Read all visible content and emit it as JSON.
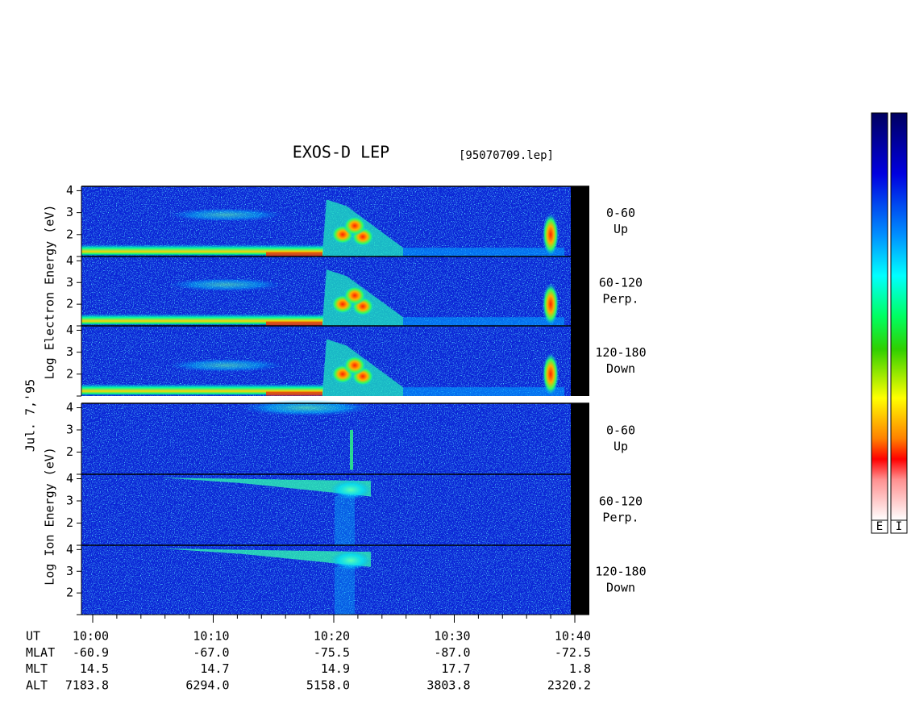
{
  "title": "EXOS-D LEP",
  "file": "[95070709.lep]",
  "date": "Jul. 7,'95",
  "ylim": [
    1,
    4.2
  ],
  "yticks": [
    2,
    3,
    4
  ],
  "electron": {
    "axis_label": "Log  Electron  Energy  (eV)",
    "panels": [
      {
        "angle": "0-60",
        "direction": "Up"
      },
      {
        "angle": "60-120",
        "direction": "Perp."
      },
      {
        "angle": "120-180",
        "direction": "Down"
      }
    ]
  },
  "ion": {
    "axis_label": "Log   Ion   Energy  (eV)",
    "panels": [
      {
        "angle": "0-60",
        "direction": "Up"
      },
      {
        "angle": "60-120",
        "direction": "Perp."
      },
      {
        "angle": "120-180",
        "direction": "Down"
      }
    ]
  },
  "orbit": {
    "row_labels": [
      "UT",
      "MLAT",
      "MLT",
      "ALT"
    ],
    "columns": [
      [
        "10:00",
        "-60.9",
        "14.5",
        "7183.8"
      ],
      [
        "10:10",
        "-67.0",
        "14.7",
        "6294.0"
      ],
      [
        "10:20",
        "-75.5",
        "14.9",
        "5158.0"
      ],
      [
        "10:30",
        "-87.0",
        "17.7",
        "3803.8"
      ],
      [
        "10:40",
        "-72.5",
        "1.8",
        "2320.2"
      ]
    ]
  },
  "colorbars": [
    "E",
    "I"
  ]
}
